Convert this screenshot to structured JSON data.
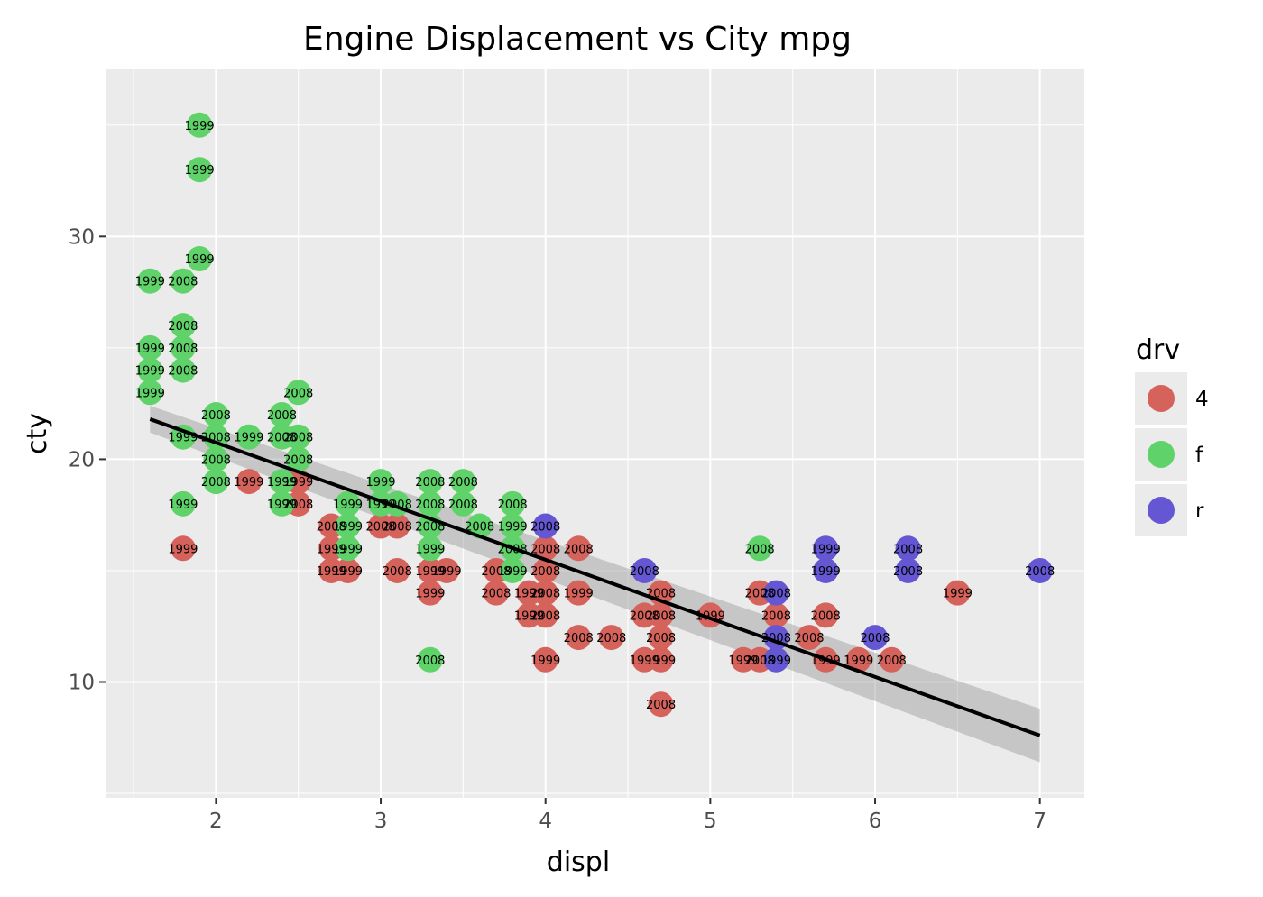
{
  "chart_data": {
    "type": "scatter",
    "title": "Engine Displacement vs City mpg",
    "xlabel": "displ",
    "ylabel": "cty",
    "xlim": [
      1.33,
      7.27
    ],
    "ylim": [
      4.8,
      37.5
    ],
    "x_ticks": [
      2,
      3,
      4,
      5,
      6,
      7
    ],
    "y_ticks": [
      10,
      20,
      30
    ],
    "grid": true,
    "legend": {
      "title": "drv",
      "position": "right",
      "entries": [
        {
          "name": "4",
          "color": "#d5625b"
        },
        {
          "name": "f",
          "color": "#5fd36a"
        },
        {
          "name": "r",
          "color": "#6557d3"
        }
      ]
    },
    "series": [
      {
        "name": "4",
        "color": "#d5625b",
        "points": [
          {
            "x": 1.8,
            "y": 16,
            "label": "1999"
          },
          {
            "x": 2.2,
            "y": 19,
            "label": "1999"
          },
          {
            "x": 2.5,
            "y": 19,
            "label": "1999"
          },
          {
            "x": 2.5,
            "y": 18,
            "label": "2008"
          },
          {
            "x": 2.7,
            "y": 17,
            "label": "2008"
          },
          {
            "x": 2.7,
            "y": 16,
            "label": "1999"
          },
          {
            "x": 2.7,
            "y": 15,
            "label": "1999"
          },
          {
            "x": 2.8,
            "y": 15,
            "label": "1999"
          },
          {
            "x": 3.0,
            "y": 17,
            "label": "2008"
          },
          {
            "x": 3.1,
            "y": 17,
            "label": "2008"
          },
          {
            "x": 3.1,
            "y": 15,
            "label": "2008"
          },
          {
            "x": 3.3,
            "y": 15,
            "label": "1999"
          },
          {
            "x": 3.3,
            "y": 14,
            "label": "1999"
          },
          {
            "x": 3.4,
            "y": 15,
            "label": "1999"
          },
          {
            "x": 3.7,
            "y": 15,
            "label": "2008"
          },
          {
            "x": 3.7,
            "y": 14,
            "label": "2008"
          },
          {
            "x": 3.9,
            "y": 14,
            "label": "1999"
          },
          {
            "x": 3.9,
            "y": 13,
            "label": "1999"
          },
          {
            "x": 4.0,
            "y": 16,
            "label": "2008"
          },
          {
            "x": 4.0,
            "y": 15,
            "label": "2008"
          },
          {
            "x": 4.0,
            "y": 14,
            "label": "2008"
          },
          {
            "x": 4.0,
            "y": 13,
            "label": "2008"
          },
          {
            "x": 4.0,
            "y": 11,
            "label": "1999"
          },
          {
            "x": 4.2,
            "y": 16,
            "label": "2008"
          },
          {
            "x": 4.2,
            "y": 14,
            "label": "1999"
          },
          {
            "x": 4.2,
            "y": 12,
            "label": "2008"
          },
          {
            "x": 4.4,
            "y": 12,
            "label": "2008"
          },
          {
            "x": 4.6,
            "y": 13,
            "label": "2008"
          },
          {
            "x": 4.6,
            "y": 11,
            "label": "1999"
          },
          {
            "x": 4.7,
            "y": 14,
            "label": "2008"
          },
          {
            "x": 4.7,
            "y": 13,
            "label": "2008"
          },
          {
            "x": 4.7,
            "y": 12,
            "label": "2008"
          },
          {
            "x": 4.7,
            "y": 11,
            "label": "1999"
          },
          {
            "x": 4.7,
            "y": 9,
            "label": "2008"
          },
          {
            "x": 5.0,
            "y": 13,
            "label": "1999"
          },
          {
            "x": 5.2,
            "y": 11,
            "label": "1999"
          },
          {
            "x": 5.3,
            "y": 14,
            "label": "2008"
          },
          {
            "x": 5.3,
            "y": 11,
            "label": "2008"
          },
          {
            "x": 5.4,
            "y": 13,
            "label": "2008"
          },
          {
            "x": 5.6,
            "y": 12,
            "label": "2008"
          },
          {
            "x": 5.7,
            "y": 13,
            "label": "2008"
          },
          {
            "x": 5.7,
            "y": 11,
            "label": "1999"
          },
          {
            "x": 5.9,
            "y": 11,
            "label": "1999"
          },
          {
            "x": 6.1,
            "y": 11,
            "label": "2008"
          },
          {
            "x": 6.5,
            "y": 14,
            "label": "1999"
          }
        ]
      },
      {
        "name": "f",
        "color": "#5fd36a",
        "points": [
          {
            "x": 1.6,
            "y": 28,
            "label": "1999"
          },
          {
            "x": 1.6,
            "y": 25,
            "label": "1999"
          },
          {
            "x": 1.6,
            "y": 24,
            "label": "1999"
          },
          {
            "x": 1.6,
            "y": 23,
            "label": "1999"
          },
          {
            "x": 1.8,
            "y": 28,
            "label": "2008"
          },
          {
            "x": 1.8,
            "y": 26,
            "label": "2008"
          },
          {
            "x": 1.8,
            "y": 25,
            "label": "2008"
          },
          {
            "x": 1.8,
            "y": 24,
            "label": "2008"
          },
          {
            "x": 1.8,
            "y": 21,
            "label": "1999"
          },
          {
            "x": 1.8,
            "y": 18,
            "label": "1999"
          },
          {
            "x": 1.9,
            "y": 35,
            "label": "1999"
          },
          {
            "x": 1.9,
            "y": 33,
            "label": "1999"
          },
          {
            "x": 1.9,
            "y": 29,
            "label": "1999"
          },
          {
            "x": 2.0,
            "y": 22,
            "label": "2008"
          },
          {
            "x": 2.0,
            "y": 21,
            "label": "2008"
          },
          {
            "x": 2.0,
            "y": 20,
            "label": "2008"
          },
          {
            "x": 2.0,
            "y": 19,
            "label": "2008"
          },
          {
            "x": 2.2,
            "y": 21,
            "label": "1999"
          },
          {
            "x": 2.4,
            "y": 22,
            "label": "2008"
          },
          {
            "x": 2.4,
            "y": 21,
            "label": "2008"
          },
          {
            "x": 2.4,
            "y": 19,
            "label": "1999"
          },
          {
            "x": 2.4,
            "y": 18,
            "label": "1999"
          },
          {
            "x": 2.5,
            "y": 23,
            "label": "2008"
          },
          {
            "x": 2.5,
            "y": 21,
            "label": "2008"
          },
          {
            "x": 2.5,
            "y": 20,
            "label": "2008"
          },
          {
            "x": 2.8,
            "y": 18,
            "label": "1999"
          },
          {
            "x": 2.8,
            "y": 17,
            "label": "1999"
          },
          {
            "x": 2.8,
            "y": 16,
            "label": "1999"
          },
          {
            "x": 3.0,
            "y": 19,
            "label": "1999"
          },
          {
            "x": 3.0,
            "y": 18,
            "label": "1999"
          },
          {
            "x": 3.1,
            "y": 18,
            "label": "2008"
          },
          {
            "x": 3.3,
            "y": 19,
            "label": "2008"
          },
          {
            "x": 3.3,
            "y": 18,
            "label": "2008"
          },
          {
            "x": 3.3,
            "y": 17,
            "label": "2008"
          },
          {
            "x": 3.3,
            "y": 16,
            "label": "1999"
          },
          {
            "x": 3.3,
            "y": 11,
            "label": "2008"
          },
          {
            "x": 3.5,
            "y": 19,
            "label": "2008"
          },
          {
            "x": 3.5,
            "y": 18,
            "label": "2008"
          },
          {
            "x": 3.6,
            "y": 17,
            "label": "2008"
          },
          {
            "x": 3.8,
            "y": 18,
            "label": "2008"
          },
          {
            "x": 3.8,
            "y": 17,
            "label": "1999"
          },
          {
            "x": 3.8,
            "y": 16,
            "label": "2008"
          },
          {
            "x": 3.8,
            "y": 15,
            "label": "1999"
          },
          {
            "x": 5.3,
            "y": 16,
            "label": "2008"
          }
        ]
      },
      {
        "name": "r",
        "color": "#6557d3",
        "points": [
          {
            "x": 4.0,
            "y": 17,
            "label": "2008"
          },
          {
            "x": 4.6,
            "y": 15,
            "label": "2008"
          },
          {
            "x": 5.4,
            "y": 14,
            "label": "2008"
          },
          {
            "x": 5.4,
            "y": 12,
            "label": "2008"
          },
          {
            "x": 5.4,
            "y": 11,
            "label": "1999"
          },
          {
            "x": 5.7,
            "y": 16,
            "label": "1999"
          },
          {
            "x": 5.7,
            "y": 15,
            "label": "1999"
          },
          {
            "x": 6.0,
            "y": 12,
            "label": "2008"
          },
          {
            "x": 6.2,
            "y": 16,
            "label": "2008"
          },
          {
            "x": 6.2,
            "y": 15,
            "label": "2008"
          },
          {
            "x": 7.0,
            "y": 15,
            "label": "2008"
          }
        ]
      }
    ],
    "trend_line": {
      "type": "linear",
      "color": "#000000",
      "ci_color": "#999999",
      "x_start": 1.6,
      "x_end": 7.0,
      "y_start": 21.8,
      "y_end": 7.6,
      "ci_start": [
        21.2,
        22.4
      ],
      "ci_end": [
        6.4,
        8.8
      ]
    }
  }
}
